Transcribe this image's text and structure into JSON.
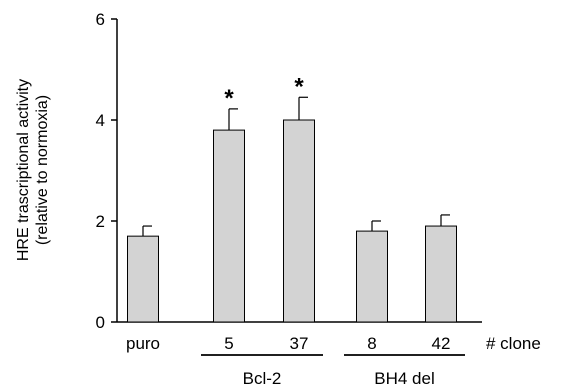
{
  "chart_data": {
    "type": "bar",
    "ylabel_line1": "HRE trascriptional activity",
    "ylabel_line2": "(relative to normoxia)",
    "ylim": [
      0,
      6
    ],
    "yticks": [
      "0",
      "2",
      "4",
      "6"
    ],
    "ytick_values": [
      0,
      2,
      4,
      6
    ],
    "categories": [
      "puro",
      "5",
      "37",
      "8",
      "42"
    ],
    "values": [
      1.7,
      3.8,
      4.0,
      1.8,
      1.9
    ],
    "errors": [
      0.2,
      0.42,
      0.45,
      0.2,
      0.22
    ],
    "significance": [
      "",
      "*",
      "*",
      "",
      ""
    ],
    "x_axis_suffix": "# clone",
    "groups": [
      {
        "label": "Bcl-2",
        "categories": [
          "5",
          "37"
        ]
      },
      {
        "label": "BH4 del",
        "categories": [
          "8",
          "42"
        ]
      }
    ],
    "bar_color": "#d3d3d3",
    "edge_color": "#000000",
    "grid": false,
    "legend": "none"
  }
}
